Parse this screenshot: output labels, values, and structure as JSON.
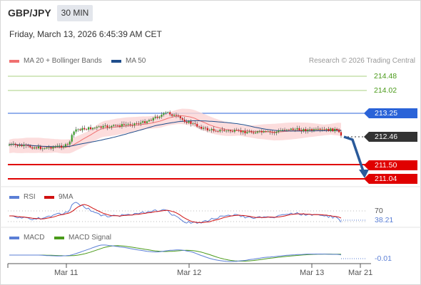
{
  "header": {
    "symbol": "GBP/JPY",
    "timeframe": "30 MIN",
    "datetime": "Friday, March 13, 2026 6:45:39 AM CET"
  },
  "main_chart": {
    "legend": [
      {
        "label": "MA 20 + Bollinger Bands",
        "color": "#f07070"
      },
      {
        "label": "MA 50",
        "color": "#1f4e8c"
      }
    ],
    "credit": "Research © 2026 Trading Central",
    "levels": [
      {
        "label": "214.48",
        "color": "#4a9a1a",
        "style": "text"
      },
      {
        "label": "214.02",
        "color": "#4a9a1a",
        "style": "text"
      },
      {
        "label": "213.25",
        "color": "#2a63d8",
        "style": "tag"
      },
      {
        "label": "212.46",
        "color": "#333333",
        "style": "tag"
      },
      {
        "label": "211.50",
        "color": "#e00000",
        "style": "tag"
      },
      {
        "label": "211.04",
        "color": "#e00000",
        "style": "tag"
      }
    ]
  },
  "rsi_panel": {
    "legend": [
      {
        "label": "RSI",
        "color": "#5b7fd6"
      },
      {
        "label": "9MA",
        "color": "#d01010"
      }
    ],
    "level_label": "70",
    "value_label": "38.21"
  },
  "macd_panel": {
    "legend": [
      {
        "label": "MACD",
        "color": "#5b7fd6"
      },
      {
        "label": "MACD Signal",
        "color": "#4a9a1a"
      }
    ],
    "value_label": "-0.01"
  },
  "x_axis": {
    "labels": [
      "Mar 11",
      "Mar 12",
      "Mar 13",
      "Mar 21"
    ]
  }
}
